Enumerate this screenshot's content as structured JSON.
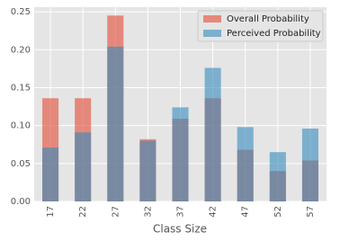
{
  "chart_data": {
    "type": "bar",
    "xlabel": "Class Size",
    "categories": [
      "17",
      "22",
      "27",
      "32",
      "37",
      "42",
      "47",
      "52",
      "57"
    ],
    "series": [
      {
        "name": "Overall Probability",
        "color": "#E24A33",
        "values": [
          0.136,
          0.136,
          0.245,
          0.082,
          0.109,
          0.136,
          0.068,
          0.04,
          0.054
        ]
      },
      {
        "name": "Perceived Probability",
        "color": "#348ABD",
        "values": [
          0.071,
          0.091,
          0.204,
          0.08,
          0.124,
          0.176,
          0.098,
          0.065,
          0.096
        ]
      }
    ],
    "ylim": [
      0,
      0.256
    ],
    "yticks": [
      {
        "value": 0,
        "label": "0.00"
      },
      {
        "value": 0.05,
        "label": "0.05"
      },
      {
        "value": 0.1,
        "label": "0.10"
      },
      {
        "value": 0.15,
        "label": "0.15"
      },
      {
        "value": 0.2,
        "label": "0.20"
      },
      {
        "value": 0.25,
        "label": "0.25"
      }
    ],
    "grid": true,
    "legend": "upper right"
  }
}
